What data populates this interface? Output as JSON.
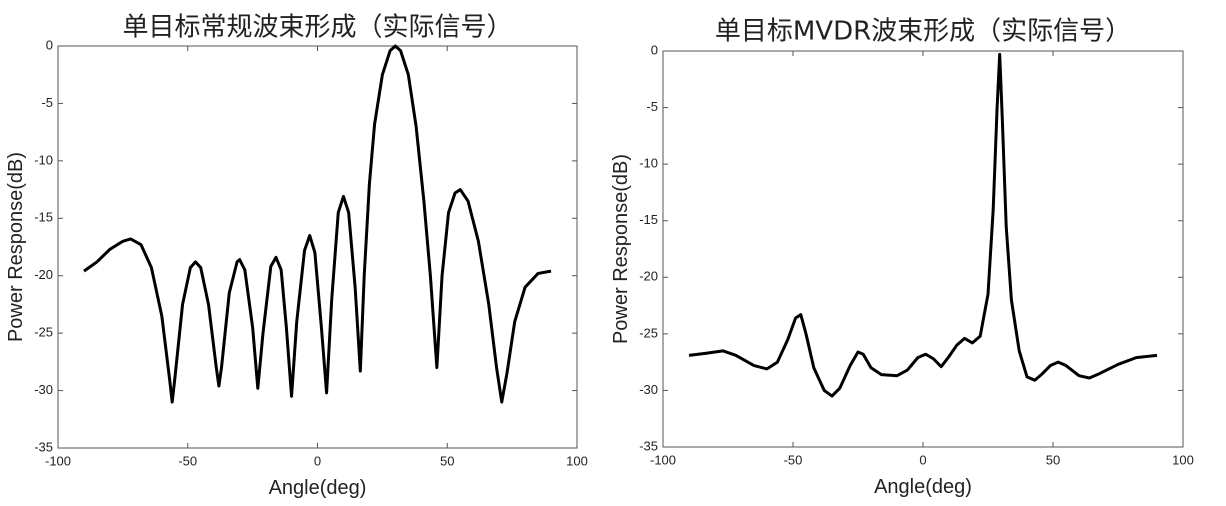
{
  "chart_data": [
    {
      "type": "line",
      "title": "单目标常规波束形成（实际信号）",
      "x_label": "Angle(deg)",
      "y_label": "Power Response(dB)",
      "x": [
        -90,
        -85,
        -80,
        -75,
        -72,
        -68,
        -64,
        -60,
        -57,
        -56,
        -55,
        -52,
        -49,
        -47,
        -45,
        -42,
        -39,
        -38,
        -37,
        -34,
        -31,
        -30,
        -28,
        -25,
        -23,
        -21,
        -18,
        -16,
        -14,
        -12,
        -10,
        -8,
        -5,
        -3,
        -1,
        1.5,
        3.5,
        5.5,
        8,
        10,
        12,
        14.5,
        16.5,
        18,
        20,
        22,
        25,
        28,
        30,
        32,
        35,
        38,
        41,
        43.5,
        46,
        48,
        50.5,
        53,
        55,
        58,
        62,
        66,
        69,
        71,
        73,
        76,
        80,
        85,
        90
      ],
      "values": [
        -19.6,
        -18.8,
        -17.7,
        -17.0,
        -16.8,
        -17.3,
        -19.3,
        -23.5,
        -29.0,
        -31.0,
        -29.0,
        -22.5,
        -19.3,
        -18.8,
        -19.3,
        -22.5,
        -28.0,
        -29.6,
        -28.0,
        -21.5,
        -18.8,
        -18.6,
        -19.5,
        -24.5,
        -29.8,
        -25.0,
        -19.2,
        -18.4,
        -19.5,
        -24.5,
        -30.5,
        -24.0,
        -17.8,
        -16.5,
        -18.0,
        -24.5,
        -30.2,
        -22.0,
        -14.5,
        -13.1,
        -14.5,
        -21.0,
        -28.3,
        -20.0,
        -12.0,
        -6.8,
        -2.5,
        -0.4,
        0,
        -0.4,
        -2.5,
        -7.0,
        -13.5,
        -20.0,
        -28.0,
        -20.0,
        -14.5,
        -12.8,
        -12.5,
        -13.5,
        -17.0,
        -22.5,
        -28.0,
        -31.0,
        -28.5,
        -24.0,
        -21.0,
        -19.8,
        -19.6
      ],
      "color": "#000000",
      "xlim": [
        -100,
        100
      ],
      "xticks": [
        -100,
        -50,
        0,
        50,
        100
      ],
      "ylim": [
        -35,
        0
      ],
      "yticks": [
        -35,
        -30,
        -25,
        -20,
        -15,
        -10,
        -5,
        0
      ],
      "grid": false
    },
    {
      "type": "line",
      "title": "单目标MVDR波束形成（实际信号）",
      "x_label": "Angle(deg)",
      "y_label": "Power Response(dB)",
      "x": [
        -90,
        -83,
        -77,
        -72,
        -65,
        -60,
        -56,
        -52,
        -49,
        -47,
        -45,
        -42,
        -38,
        -35,
        -32,
        -28,
        -25,
        -23,
        -20,
        -16,
        -10,
        -6,
        -2,
        1,
        4,
        7,
        10,
        13,
        16,
        19,
        22,
        25,
        27,
        28.5,
        29.5,
        30.5,
        32,
        34,
        37,
        40,
        43,
        46,
        49,
        52,
        55,
        60,
        64,
        68,
        75,
        82,
        90
      ],
      "values": [
        -26.9,
        -26.7,
        -26.5,
        -26.9,
        -27.8,
        -28.1,
        -27.5,
        -25.5,
        -23.6,
        -23.3,
        -25.0,
        -28.0,
        -30.0,
        -30.5,
        -29.8,
        -27.8,
        -26.6,
        -26.8,
        -28.0,
        -28.6,
        -28.7,
        -28.2,
        -27.1,
        -26.8,
        -27.2,
        -27.9,
        -27.0,
        -26.0,
        -25.4,
        -25.8,
        -25.2,
        -21.5,
        -14.0,
        -5.0,
        -0.3,
        -6.0,
        -15.5,
        -22.0,
        -26.5,
        -28.8,
        -29.1,
        -28.5,
        -27.8,
        -27.5,
        -27.8,
        -28.7,
        -28.9,
        -28.5,
        -27.7,
        -27.1,
        -26.9
      ],
      "color": "#000000",
      "xlim": [
        -100,
        100
      ],
      "xticks": [
        -100,
        -50,
        0,
        50,
        100
      ],
      "ylim": [
        -35,
        0
      ],
      "yticks": [
        -35,
        -30,
        -25,
        -20,
        -15,
        -10,
        -5,
        0
      ],
      "grid": false
    }
  ]
}
